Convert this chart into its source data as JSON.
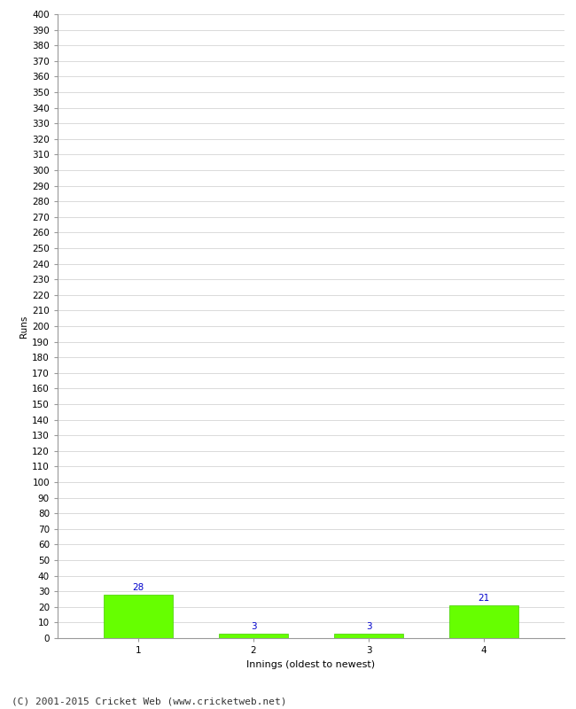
{
  "categories": [
    "1",
    "2",
    "3",
    "4"
  ],
  "values": [
    28,
    3,
    3,
    21
  ],
  "bar_color": "#66ff00",
  "bar_edge_color": "#44cc00",
  "ylabel": "Runs",
  "xlabel": "Innings (oldest to newest)",
  "ylim": [
    0,
    400
  ],
  "ytick_step": 10,
  "label_color": "#0000cc",
  "grid_color": "#cccccc",
  "background_color": "#ffffff",
  "footer_text": "(C) 2001-2015 Cricket Web (www.cricketweb.net)",
  "label_fontsize": 7.5,
  "axis_tick_fontsize": 7.5,
  "xlabel_fontsize": 8,
  "ylabel_fontsize": 7.5,
  "footer_fontsize": 8
}
